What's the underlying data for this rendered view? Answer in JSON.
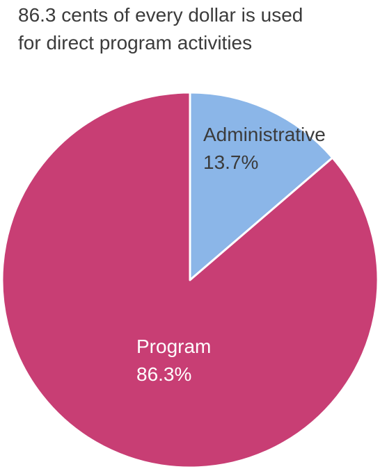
{
  "title_lines": [
    "86.3 cents of every dollar is used",
    "for direct program activities"
  ],
  "chart_data": {
    "type": "pie",
    "title": "86.3 cents of every dollar is used for direct program activities",
    "slices": [
      {
        "label": "Administrative",
        "value": 13.7,
        "value_label": "13.7%",
        "color": "#8bb6e8",
        "text_color": "#3b3b3b"
      },
      {
        "label": "Program",
        "value": 86.3,
        "value_label": "86.3%",
        "color": "#c83e74",
        "text_color": "#ffffff"
      }
    ],
    "start_angle_deg": 0,
    "direction": "clockwise",
    "legend": "none"
  }
}
